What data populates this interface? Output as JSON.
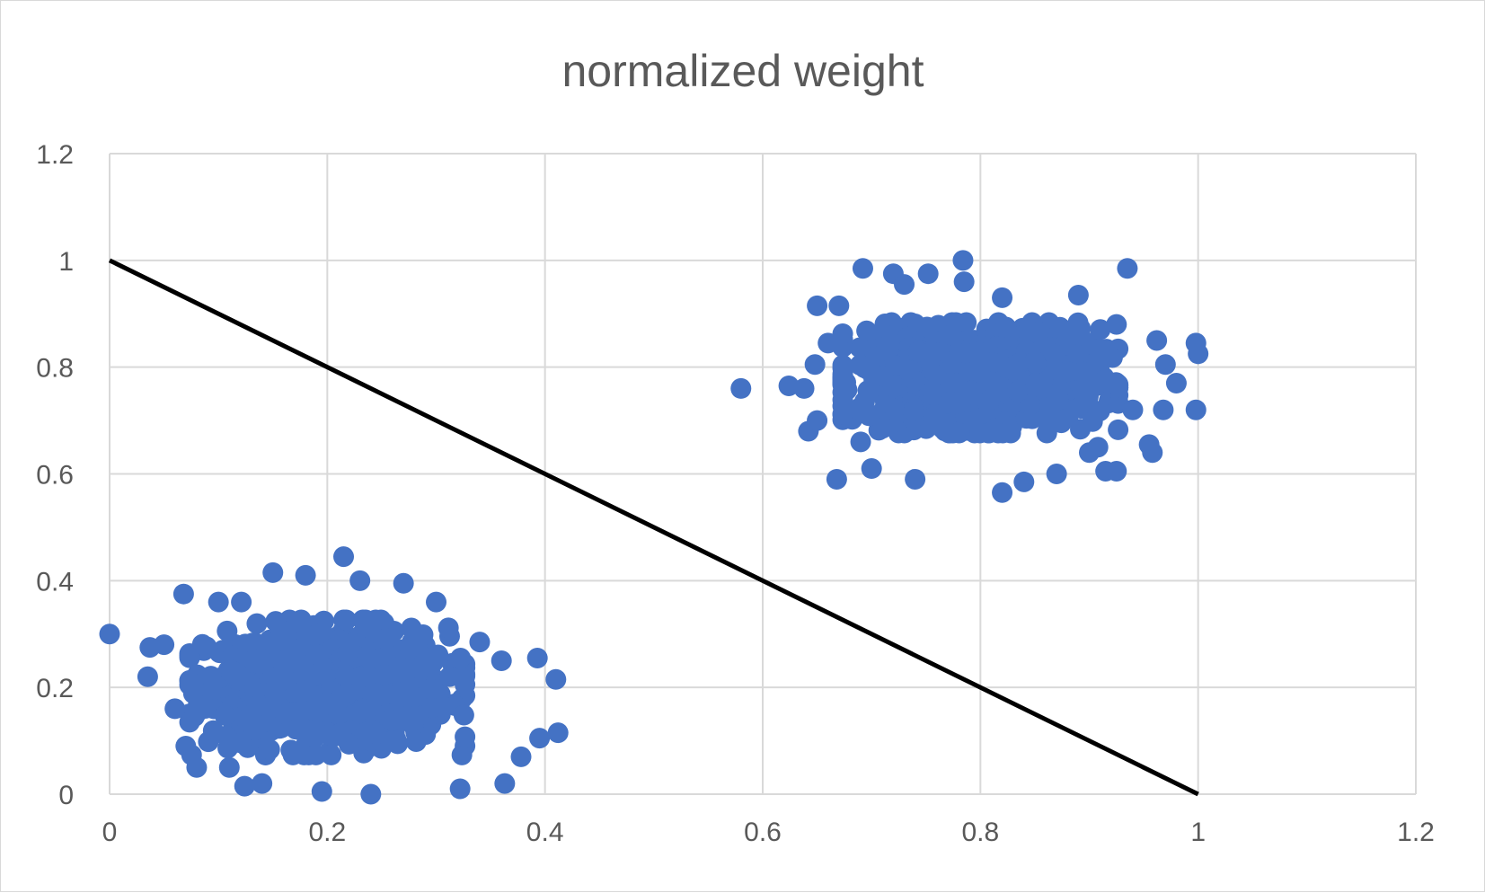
{
  "chart_data": {
    "type": "scatter",
    "title": "normalized weight",
    "xlabel": "",
    "ylabel": "",
    "xlim": [
      0,
      1.2
    ],
    "ylim": [
      0,
      1.2
    ],
    "x_ticks": [
      "0",
      "0.2",
      "0.4",
      "0.6",
      "0.8",
      "1",
      "1.2"
    ],
    "y_ticks": [
      "0",
      "0.2",
      "0.4",
      "0.6",
      "0.8",
      "1",
      "1.2"
    ],
    "grid": true,
    "legend": "none",
    "colors": {
      "points": "#4472C4",
      "line": "#000000",
      "grid": "#D9D9D9",
      "text": "#595959"
    },
    "series": [
      {
        "color": "#4472C4",
        "clusters": [
          {
            "center": [
              0.2,
              0.2
            ],
            "spread": [
              0.055,
              0.055
            ],
            "count": 900
          },
          {
            "center": [
              0.8,
              0.78
            ],
            "spread": [
              0.055,
              0.045
            ],
            "count": 900
          }
        ],
        "points": [
          [
            0.0,
            0.3
          ],
          [
            0.035,
            0.22
          ],
          [
            0.037,
            0.275
          ],
          [
            0.05,
            0.28
          ],
          [
            0.068,
            0.375
          ],
          [
            0.1,
            0.36
          ],
          [
            0.121,
            0.36
          ],
          [
            0.15,
            0.415
          ],
          [
            0.18,
            0.41
          ],
          [
            0.215,
            0.445
          ],
          [
            0.23,
            0.4
          ],
          [
            0.27,
            0.395
          ],
          [
            0.3,
            0.36
          ],
          [
            0.34,
            0.285
          ],
          [
            0.36,
            0.25
          ],
          [
            0.393,
            0.255
          ],
          [
            0.41,
            0.215
          ],
          [
            0.412,
            0.115
          ],
          [
            0.395,
            0.105
          ],
          [
            0.378,
            0.07
          ],
          [
            0.363,
            0.02
          ],
          [
            0.322,
            0.01
          ],
          [
            0.24,
            0.0
          ],
          [
            0.195,
            0.005
          ],
          [
            0.124,
            0.015
          ],
          [
            0.14,
            0.02
          ],
          [
            0.08,
            0.05
          ],
          [
            0.11,
            0.05
          ],
          [
            0.06,
            0.16
          ],
          [
            0.07,
            0.09
          ],
          [
            0.58,
            0.76
          ],
          [
            0.624,
            0.765
          ],
          [
            0.638,
            0.76
          ],
          [
            0.642,
            0.68
          ],
          [
            0.65,
            0.7
          ],
          [
            0.648,
            0.805
          ],
          [
            0.65,
            0.915
          ],
          [
            0.67,
            0.915
          ],
          [
            0.66,
            0.845
          ],
          [
            0.668,
            0.59
          ],
          [
            0.692,
            0.985
          ],
          [
            0.72,
            0.975
          ],
          [
            0.73,
            0.955
          ],
          [
            0.752,
            0.975
          ],
          [
            0.784,
            1.0
          ],
          [
            0.785,
            0.96
          ],
          [
            0.82,
            0.93
          ],
          [
            0.89,
            0.935
          ],
          [
            0.935,
            0.985
          ],
          [
            0.925,
            0.88
          ],
          [
            0.962,
            0.85
          ],
          [
            0.97,
            0.805
          ],
          [
            0.98,
            0.77
          ],
          [
            0.998,
            0.845
          ],
          [
            1.0,
            0.825
          ],
          [
            0.998,
            0.72
          ],
          [
            0.968,
            0.72
          ],
          [
            0.955,
            0.655
          ],
          [
            0.958,
            0.64
          ],
          [
            0.94,
            0.72
          ],
          [
            0.915,
            0.605
          ],
          [
            0.908,
            0.65
          ],
          [
            0.9,
            0.64
          ],
          [
            0.84,
            0.585
          ],
          [
            0.82,
            0.565
          ],
          [
            0.74,
            0.59
          ],
          [
            0.7,
            0.61
          ],
          [
            0.69,
            0.66
          ],
          [
            0.87,
            0.6
          ],
          [
            0.925,
            0.605
          ]
        ]
      }
    ],
    "lines": [
      {
        "color": "#000000",
        "points": [
          [
            0,
            1.0
          ],
          [
            1,
            0
          ]
        ]
      }
    ]
  }
}
